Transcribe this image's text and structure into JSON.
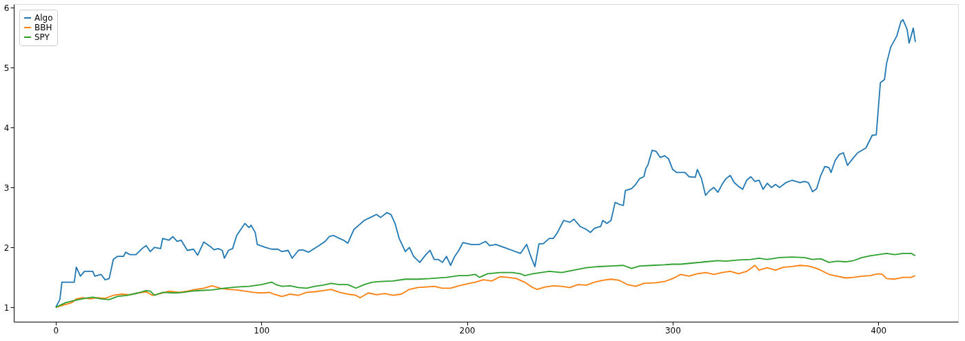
{
  "chart_data": {
    "type": "line",
    "legend": "top left",
    "grid": false,
    "marker": "none",
    "line_style": "solid",
    "xlim": [
      -20.4,
      438.8
    ],
    "ylim": [
      0.76,
      6.06
    ],
    "xticks": [
      0,
      100,
      200,
      300,
      400
    ],
    "yticks": [
      1,
      2,
      3,
      4,
      5,
      6
    ],
    "series": [
      {
        "name": "Algo",
        "color": "#1f77b4",
        "x": [
          0,
          2,
          3,
          9,
          10,
          12,
          14,
          18,
          19,
          22,
          24,
          26,
          28,
          30,
          33,
          34,
          36,
          39,
          42,
          44,
          46,
          48,
          51,
          52,
          55,
          57,
          59,
          61,
          64,
          67,
          69,
          72,
          75,
          77,
          79,
          81,
          82,
          84,
          86,
          88,
          90,
          92,
          94,
          95,
          97,
          98,
          102,
          105,
          108,
          110,
          113,
          115,
          118,
          120,
          123,
          128,
          131,
          133,
          135,
          138,
          140,
          142,
          145,
          147,
          150,
          153,
          156,
          158,
          161,
          163,
          165,
          167,
          170,
          172,
          174,
          177,
          180,
          182,
          184,
          186,
          188,
          190,
          192,
          194,
          196,
          198,
          202,
          206,
          209,
          211,
          214,
          218,
          222,
          226,
          229,
          231,
          233,
          235,
          237,
          240,
          242,
          244,
          247,
          250,
          252,
          255,
          258,
          260,
          262,
          265,
          266,
          268,
          270,
          272,
          274,
          276,
          277,
          280,
          282,
          284,
          286,
          287,
          288,
          290,
          292,
          294,
          296,
          298,
          300,
          302,
          306,
          308,
          311,
          312,
          314,
          316,
          318,
          320,
          322,
          324,
          326,
          328,
          330,
          332,
          334,
          336,
          338,
          340,
          342,
          344,
          346,
          348,
          350,
          352,
          355,
          358,
          362,
          364,
          366,
          368,
          370,
          372,
          374,
          376,
          377,
          379,
          381,
          383,
          385,
          388,
          390,
          394,
          397,
          399,
          401,
          403,
          404,
          406,
          409,
          411,
          412,
          414,
          415,
          417,
          418
        ],
        "values": [
          1.0,
          1.13,
          1.42,
          1.42,
          1.67,
          1.52,
          1.6,
          1.6,
          1.52,
          1.55,
          1.46,
          1.48,
          1.8,
          1.85,
          1.85,
          1.92,
          1.88,
          1.88,
          1.98,
          2.03,
          1.93,
          2.0,
          1.98,
          2.15,
          2.12,
          2.18,
          2.1,
          2.12,
          1.95,
          1.97,
          1.87,
          2.09,
          2.02,
          1.96,
          1.98,
          1.95,
          1.82,
          1.95,
          1.98,
          2.2,
          2.3,
          2.4,
          2.33,
          2.37,
          2.25,
          2.05,
          2.0,
          1.97,
          1.97,
          1.93,
          1.95,
          1.82,
          1.95,
          1.96,
          1.92,
          2.03,
          2.1,
          2.18,
          2.2,
          2.15,
          2.12,
          2.07,
          2.3,
          2.36,
          2.45,
          2.5,
          2.55,
          2.5,
          2.58,
          2.55,
          2.4,
          2.15,
          1.93,
          2.0,
          1.85,
          1.75,
          1.88,
          1.95,
          1.8,
          1.8,
          1.75,
          1.85,
          1.7,
          1.85,
          1.95,
          2.08,
          2.05,
          2.05,
          2.1,
          2.03,
          2.05,
          2.0,
          1.95,
          1.9,
          2.05,
          1.85,
          1.68,
          2.06,
          2.06,
          2.15,
          2.15,
          2.25,
          2.45,
          2.42,
          2.47,
          2.35,
          2.3,
          2.25,
          2.32,
          2.35,
          2.45,
          2.4,
          2.45,
          2.75,
          2.72,
          2.7,
          2.95,
          2.98,
          3.05,
          3.15,
          3.18,
          3.32,
          3.38,
          3.62,
          3.6,
          3.5,
          3.53,
          3.48,
          3.3,
          3.25,
          3.25,
          3.18,
          3.17,
          3.3,
          3.15,
          2.87,
          2.95,
          3.0,
          2.92,
          3.05,
          3.15,
          3.2,
          3.08,
          3.02,
          2.97,
          3.12,
          3.18,
          3.1,
          3.12,
          2.97,
          3.07,
          3.0,
          3.05,
          3.0,
          3.08,
          3.12,
          3.08,
          3.1,
          3.08,
          2.93,
          2.98,
          3.2,
          3.35,
          3.33,
          3.25,
          3.45,
          3.55,
          3.58,
          3.37,
          3.5,
          3.58,
          3.66,
          3.87,
          3.88,
          4.75,
          4.8,
          5.07,
          5.34,
          5.53,
          5.77,
          5.8,
          5.64,
          5.41,
          5.66,
          5.43
        ]
      },
      {
        "name": "BBH",
        "color": "#ff7f0e",
        "x": [
          0,
          4,
          8,
          10,
          13,
          17,
          20,
          24,
          28,
          32,
          36,
          40,
          44,
          47,
          50,
          55,
          60,
          64,
          68,
          72,
          76,
          80,
          84,
          88,
          92,
          96,
          100,
          104,
          106,
          110,
          114,
          118,
          122,
          126,
          130,
          134,
          138,
          142,
          146,
          148,
          152,
          156,
          160,
          164,
          168,
          172,
          176,
          180,
          184,
          188,
          192,
          196,
          200,
          204,
          208,
          212,
          216,
          220,
          224,
          228,
          232,
          234,
          238,
          242,
          246,
          250,
          254,
          258,
          262,
          266,
          270,
          274,
          278,
          282,
          286,
          292,
          296,
          300,
          304,
          308,
          312,
          316,
          320,
          324,
          328,
          332,
          336,
          340,
          342,
          346,
          350,
          354,
          358,
          362,
          366,
          370,
          372,
          376,
          380,
          384,
          388,
          392,
          396,
          400,
          402,
          404,
          408,
          412,
          416,
          418
        ],
        "values": [
          1.0,
          1.04,
          1.08,
          1.14,
          1.16,
          1.14,
          1.16,
          1.15,
          1.2,
          1.22,
          1.21,
          1.24,
          1.26,
          1.2,
          1.22,
          1.27,
          1.25,
          1.27,
          1.3,
          1.32,
          1.36,
          1.32,
          1.3,
          1.29,
          1.27,
          1.25,
          1.24,
          1.25,
          1.22,
          1.18,
          1.22,
          1.2,
          1.25,
          1.26,
          1.28,
          1.3,
          1.25,
          1.22,
          1.2,
          1.16,
          1.24,
          1.21,
          1.23,
          1.2,
          1.22,
          1.3,
          1.33,
          1.34,
          1.35,
          1.32,
          1.32,
          1.36,
          1.39,
          1.42,
          1.46,
          1.44,
          1.51,
          1.5,
          1.48,
          1.42,
          1.33,
          1.3,
          1.34,
          1.36,
          1.35,
          1.33,
          1.38,
          1.37,
          1.42,
          1.45,
          1.47,
          1.45,
          1.38,
          1.35,
          1.4,
          1.41,
          1.43,
          1.48,
          1.55,
          1.52,
          1.56,
          1.58,
          1.55,
          1.58,
          1.6,
          1.56,
          1.6,
          1.7,
          1.62,
          1.66,
          1.62,
          1.67,
          1.68,
          1.7,
          1.69,
          1.65,
          1.62,
          1.55,
          1.52,
          1.49,
          1.5,
          1.52,
          1.53,
          1.56,
          1.55,
          1.48,
          1.47,
          1.5,
          1.5,
          1.53
        ]
      },
      {
        "name": "SPY",
        "color": "#2ca02c",
        "x": [
          0,
          5,
          10,
          14,
          18,
          22,
          26,
          30,
          35,
          40,
          44,
          46,
          48,
          52,
          58,
          62,
          66,
          70,
          76,
          82,
          88,
          94,
          100,
          105,
          107,
          110,
          114,
          118,
          122,
          126,
          130,
          134,
          138,
          142,
          146,
          150,
          154,
          158,
          164,
          170,
          176,
          182,
          190,
          196,
          200,
          204,
          206,
          210,
          216,
          222,
          226,
          228,
          232,
          236,
          240,
          246,
          252,
          258,
          264,
          270,
          276,
          280,
          284,
          290,
          296,
          300,
          304,
          310,
          316,
          322,
          326,
          332,
          338,
          342,
          346,
          352,
          358,
          364,
          368,
          372,
          376,
          380,
          384,
          388,
          392,
          396,
          400,
          404,
          408,
          412,
          416,
          418
        ],
        "values": [
          1.0,
          1.08,
          1.12,
          1.15,
          1.17,
          1.14,
          1.13,
          1.18,
          1.2,
          1.24,
          1.28,
          1.27,
          1.2,
          1.25,
          1.24,
          1.25,
          1.27,
          1.28,
          1.29,
          1.32,
          1.34,
          1.35,
          1.38,
          1.42,
          1.38,
          1.35,
          1.36,
          1.33,
          1.32,
          1.35,
          1.37,
          1.4,
          1.38,
          1.38,
          1.32,
          1.38,
          1.42,
          1.43,
          1.44,
          1.47,
          1.47,
          1.48,
          1.5,
          1.53,
          1.53,
          1.55,
          1.5,
          1.56,
          1.58,
          1.58,
          1.56,
          1.53,
          1.56,
          1.58,
          1.6,
          1.58,
          1.62,
          1.66,
          1.68,
          1.69,
          1.7,
          1.65,
          1.69,
          1.7,
          1.71,
          1.72,
          1.72,
          1.74,
          1.76,
          1.78,
          1.77,
          1.79,
          1.8,
          1.82,
          1.8,
          1.83,
          1.84,
          1.83,
          1.8,
          1.81,
          1.75,
          1.77,
          1.76,
          1.78,
          1.83,
          1.86,
          1.88,
          1.9,
          1.88,
          1.9,
          1.9,
          1.86
        ]
      }
    ]
  }
}
